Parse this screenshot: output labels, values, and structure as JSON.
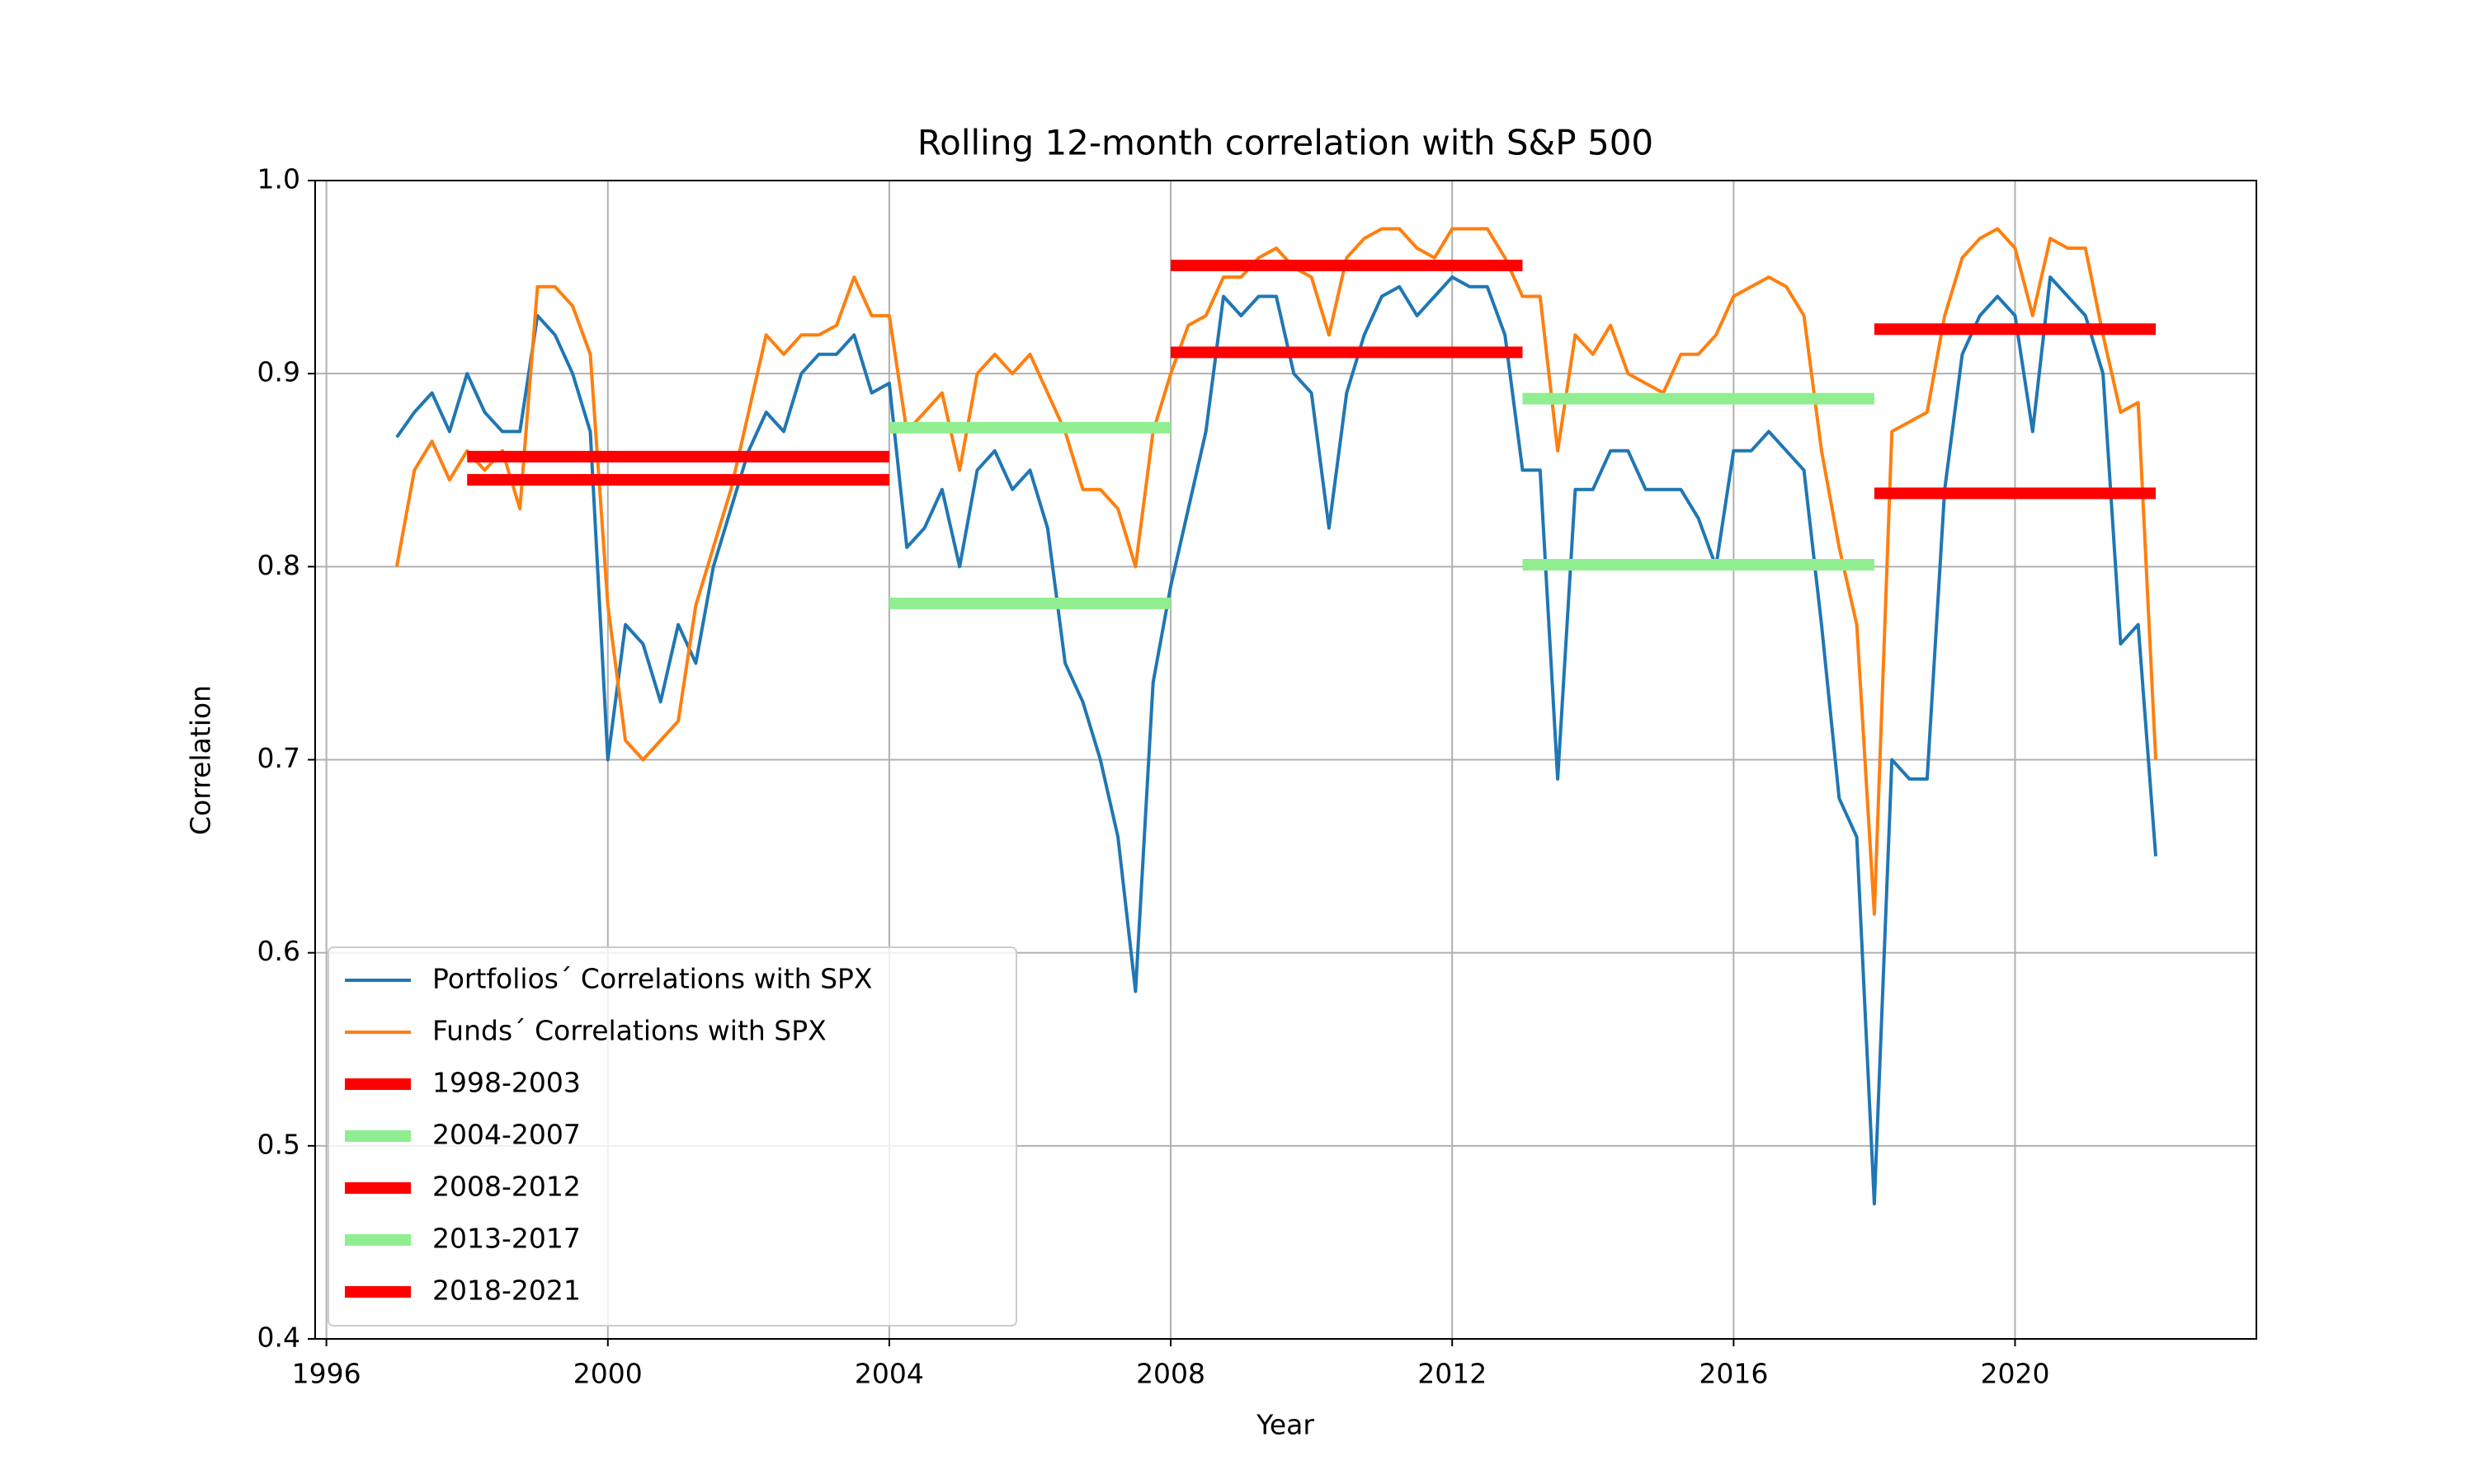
{
  "chart_data": {
    "type": "line",
    "title": "Rolling 12-month correlation with S&P 500",
    "xlabel": "Year",
    "ylabel": "Correlation",
    "x": [
      1997,
      1997.25,
      1997.5,
      1997.75,
      1998,
      1998.25,
      1998.5,
      1998.75,
      1999,
      1999.25,
      1999.5,
      1999.75,
      2000,
      2000.25,
      2000.5,
      2000.75,
      2001,
      2001.25,
      2001.5,
      2001.75,
      2002,
      2002.25,
      2002.5,
      2002.75,
      2003,
      2003.25,
      2003.5,
      2003.75,
      2004,
      2004.25,
      2004.5,
      2004.75,
      2005,
      2005.25,
      2005.5,
      2005.75,
      2006,
      2006.25,
      2006.5,
      2006.75,
      2007,
      2007.25,
      2007.5,
      2007.75,
      2008,
      2008.25,
      2008.5,
      2008.75,
      2009,
      2009.25,
      2009.5,
      2009.75,
      2010,
      2010.25,
      2010.5,
      2010.75,
      2011,
      2011.25,
      2011.5,
      2011.75,
      2012,
      2012.25,
      2012.5,
      2012.75,
      2013,
      2013.25,
      2013.5,
      2013.75,
      2014,
      2014.25,
      2014.5,
      2014.75,
      2015,
      2015.25,
      2015.5,
      2015.75,
      2016,
      2016.25,
      2016.5,
      2016.75,
      2017,
      2017.25,
      2017.5,
      2017.75,
      2018,
      2018.25,
      2018.5,
      2018.75,
      2019,
      2019.25,
      2019.5,
      2019.75,
      2020,
      2020.25,
      2020.5,
      2020.75,
      2021,
      2021.25,
      2021.5,
      2021.75,
      2022
    ],
    "series": [
      {
        "name": "Portfolios´ Correlations with SPX",
        "color": "#1f77b4",
        "values": [
          0.867,
          0.88,
          0.89,
          0.87,
          0.9,
          0.88,
          0.87,
          0.87,
          0.93,
          0.92,
          0.9,
          0.87,
          0.7,
          0.77,
          0.76,
          0.73,
          0.77,
          0.75,
          0.8,
          0.83,
          0.86,
          0.88,
          0.87,
          0.9,
          0.91,
          0.91,
          0.92,
          0.89,
          0.895,
          0.81,
          0.82,
          0.84,
          0.8,
          0.85,
          0.86,
          0.84,
          0.85,
          0.82,
          0.75,
          0.73,
          0.7,
          0.66,
          0.58,
          0.74,
          0.79,
          0.83,
          0.87,
          0.94,
          0.93,
          0.94,
          0.94,
          0.9,
          0.89,
          0.82,
          0.89,
          0.92,
          0.94,
          0.945,
          0.93,
          0.94,
          0.95,
          0.945,
          0.945,
          0.92,
          0.85,
          0.85,
          0.69,
          0.84,
          0.84,
          0.86,
          0.86,
          0.84,
          0.84,
          0.84,
          0.825,
          0.8,
          0.86,
          0.86,
          0.87,
          0.86,
          0.85,
          0.77,
          0.68,
          0.66,
          0.47,
          0.7,
          0.69,
          0.69,
          0.84,
          0.91,
          0.93,
          0.94,
          0.93,
          0.87,
          0.95,
          0.94,
          0.93,
          0.9,
          0.76,
          0.77,
          0.65
        ]
      },
      {
        "name": "Funds´ Correlations with SPX",
        "color": "#ff7f0e",
        "values": [
          0.8,
          0.85,
          0.865,
          0.845,
          0.86,
          0.85,
          0.86,
          0.83,
          0.945,
          0.945,
          0.935,
          0.91,
          0.78,
          0.71,
          0.7,
          0.71,
          0.72,
          0.78,
          0.81,
          0.84,
          0.88,
          0.92,
          0.91,
          0.92,
          0.92,
          0.925,
          0.95,
          0.93,
          0.93,
          0.87,
          0.88,
          0.89,
          0.85,
          0.9,
          0.91,
          0.9,
          0.91,
          0.89,
          0.87,
          0.84,
          0.84,
          0.83,
          0.8,
          0.87,
          0.9,
          0.925,
          0.93,
          0.95,
          0.95,
          0.96,
          0.965,
          0.955,
          0.95,
          0.92,
          0.96,
          0.97,
          0.975,
          0.975,
          0.965,
          0.96,
          0.975,
          0.975,
          0.975,
          0.96,
          0.94,
          0.94,
          0.86,
          0.92,
          0.91,
          0.925,
          0.9,
          0.895,
          0.89,
          0.91,
          0.91,
          0.92,
          0.94,
          0.945,
          0.95,
          0.945,
          0.93,
          0.86,
          0.81,
          0.77,
          0.62,
          0.87,
          0.875,
          0.88,
          0.93,
          0.96,
          0.97,
          0.975,
          0.965,
          0.93,
          0.97,
          0.965,
          0.965,
          0.92,
          0.88,
          0.885,
          0.7
        ]
      }
    ],
    "periods": [
      {
        "name": "1998-2003",
        "color": "#ff0000",
        "x": [
          1998,
          2004
        ],
        "values": [
          0.857,
          0.845
        ]
      },
      {
        "name": "2004-2007",
        "color": "#90ee90",
        "x": [
          2004,
          2008
        ],
        "values": [
          0.872,
          0.781
        ]
      },
      {
        "name": "2008-2012",
        "color": "#ff0000",
        "x": [
          2008,
          2013
        ],
        "values": [
          0.956,
          0.911
        ]
      },
      {
        "name": "2013-2017",
        "color": "#90ee90",
        "x": [
          2013,
          2018
        ],
        "values": [
          0.887,
          0.801
        ]
      },
      {
        "name": "2018-2021",
        "color": "#ff0000",
        "x": [
          2018,
          2022
        ],
        "values": [
          0.923,
          0.838
        ]
      }
    ],
    "xlim": [
      1995.84,
      2023.43
    ],
    "ylim": [
      0.4,
      1.0
    ],
    "xticks": [
      1996,
      2000,
      2004,
      2008,
      2012,
      2016,
      2020
    ],
    "yticks": [
      0.4,
      0.5,
      0.6,
      0.7,
      0.8,
      0.9,
      {
        "value": 1,
        "label": "1.0"
      }
    ],
    "grid": true,
    "legend": "lower left"
  }
}
